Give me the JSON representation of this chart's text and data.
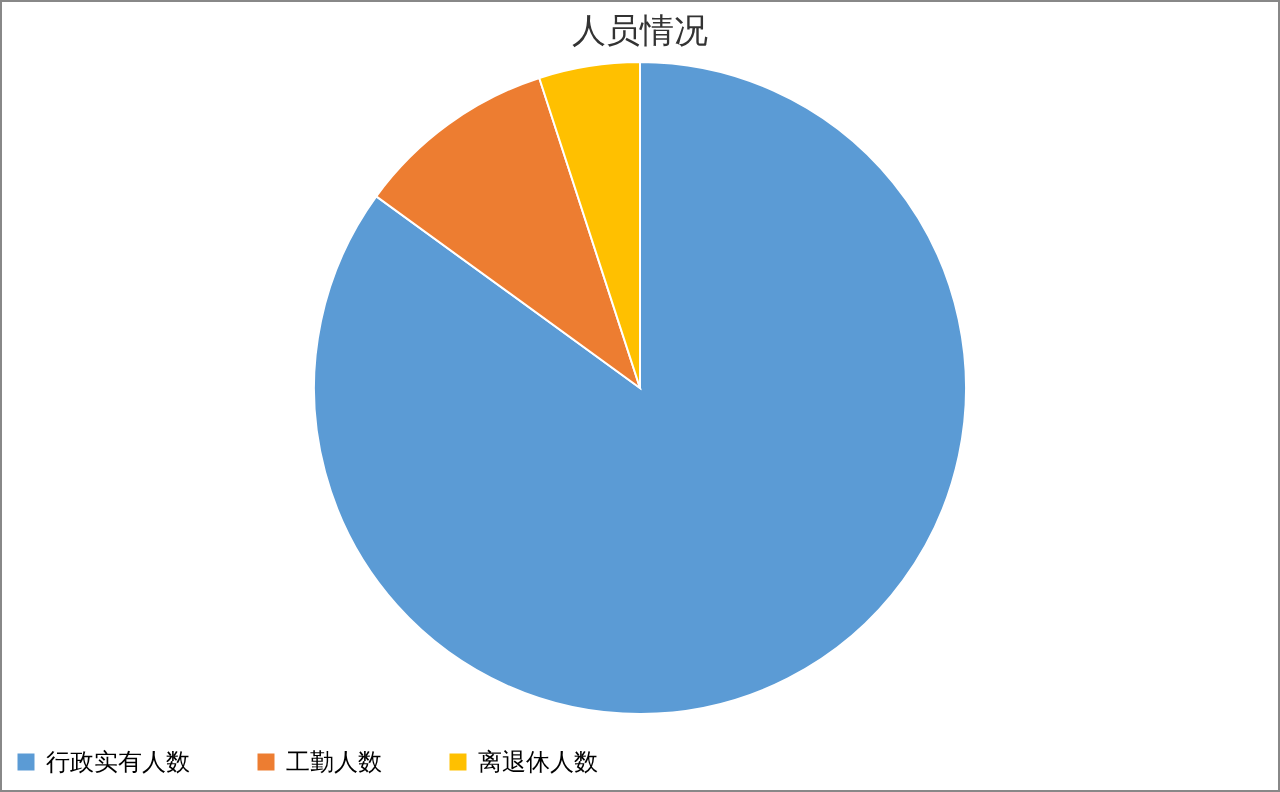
{
  "chart_data": {
    "type": "pie",
    "title": "人员情况",
    "categories": [
      "行政实有人数",
      "工勤人数",
      "离退休人数"
    ],
    "values": [
      85,
      10,
      5
    ],
    "colors": [
      "#5b9bd5",
      "#ed7d31",
      "#ffc000"
    ],
    "legend": "bottom"
  }
}
